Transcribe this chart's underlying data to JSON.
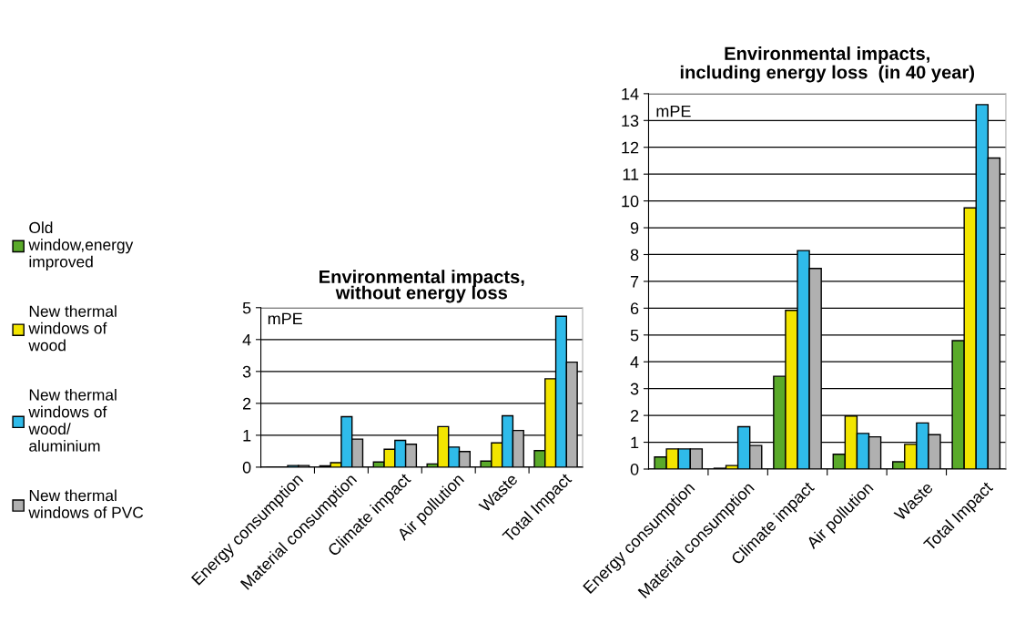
{
  "chart_data": [
    {
      "type": "bar",
      "title": "Environmental impacts,",
      "subtitle": "without energy loss",
      "ylabel": "mPE",
      "categories": [
        "Energy consumption",
        "Material consumption",
        "Climate impact",
        "Air pollution",
        "Waste",
        "Total Impact"
      ],
      "series": [
        {
          "name": "Old window,energy improved",
          "color": "#5aaa2a",
          "values": [
            null,
            0.04,
            0.16,
            0.1,
            0.19,
            0.52
          ]
        },
        {
          "name": "New thermal windows of wood",
          "color": "#f2e500",
          "values": [
            null,
            0.14,
            0.56,
            1.27,
            0.76,
            2.77
          ]
        },
        {
          "name": "New thermal windows of wood/ aluminium",
          "color": "#2fbbea",
          "values": [
            0.05,
            1.58,
            0.84,
            0.63,
            1.61,
            4.73
          ]
        },
        {
          "name": "New thermal windows of PVC",
          "color": "#b0b0b0",
          "values": [
            0.05,
            0.88,
            0.72,
            0.49,
            1.15,
            3.29
          ]
        }
      ],
      "ylim": [
        0,
        5
      ],
      "yticks": [
        0,
        1,
        2,
        3,
        4,
        5
      ],
      "grid": "y",
      "legend": "left"
    },
    {
      "type": "bar",
      "title": "Environmental impacts,",
      "subtitle": "including energy loss  (in 40 year)",
      "ylabel": "mPE",
      "categories": [
        "Energy consumption",
        "Material consumption",
        "Climate impact",
        "Air pollution",
        "Waste",
        "Total Impact"
      ],
      "series": [
        {
          "color": "#5aaa2a",
          "values": [
            0.45,
            0.03,
            3.46,
            0.55,
            0.27,
            4.79
          ]
        },
        {
          "color": "#f2e500",
          "values": [
            0.75,
            0.13,
            5.92,
            1.98,
            0.92,
            9.74
          ]
        },
        {
          "color": "#2fbbea",
          "values": [
            0.75,
            1.58,
            8.15,
            1.33,
            1.72,
            13.59
          ]
        },
        {
          "color": "#b0b0b0",
          "values": [
            0.75,
            0.88,
            7.48,
            1.2,
            1.28,
            11.6
          ]
        }
      ],
      "ylim": [
        0,
        14
      ],
      "yticks": [
        0,
        1,
        2,
        3,
        4,
        5,
        6,
        7,
        8,
        9,
        10,
        11,
        12,
        13,
        14
      ],
      "grid": "y"
    }
  ]
}
